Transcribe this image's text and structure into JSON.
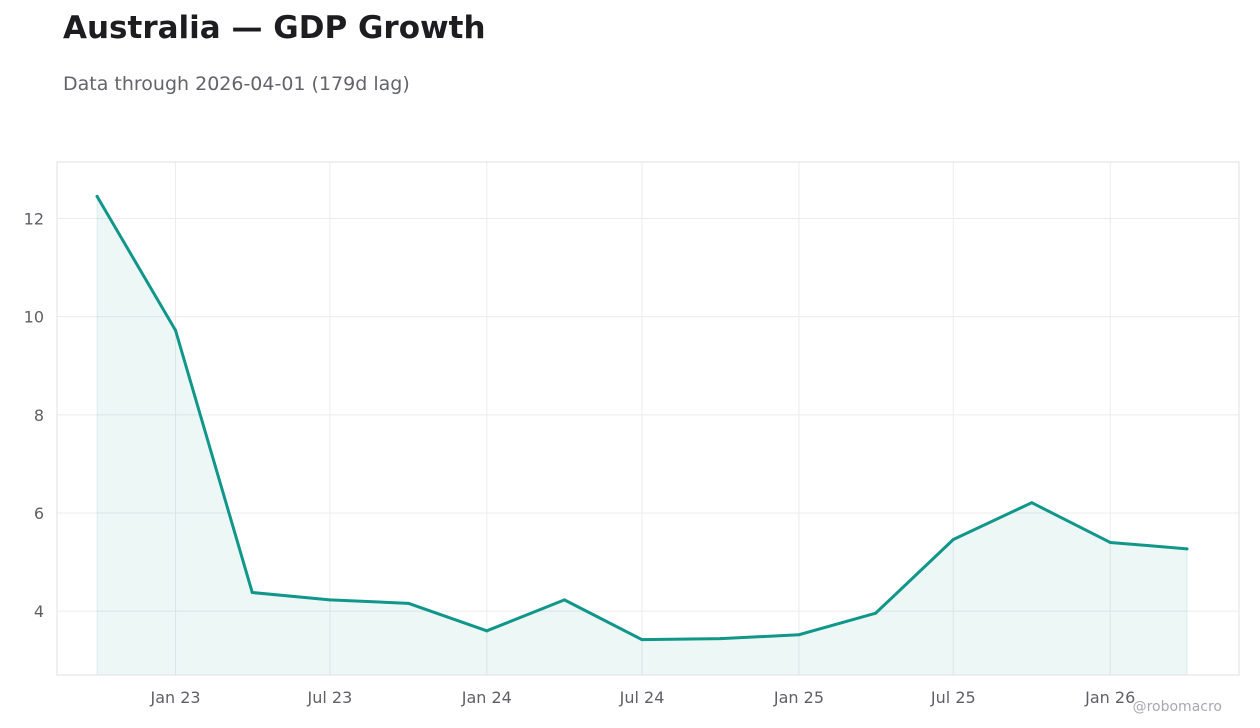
{
  "title": "Australia — GDP Growth",
  "subtitle": "Data through 2026-04-01 (179d lag)",
  "watermark": "@robomacro",
  "colors": {
    "line": "#11968a",
    "fill": "#11968a",
    "grid": "#ececef",
    "frame": "#e0e0e3"
  },
  "chart_data": {
    "type": "area",
    "title": "Australia — GDP Growth",
    "xlabel": "",
    "ylabel": "",
    "grid": true,
    "x_axis_type": "date",
    "xlim": [
      "2022-08-15",
      "2026-06-01"
    ],
    "ylim": [
      2.7,
      13.15
    ],
    "x_ticks": [
      {
        "date": "2023-01-01",
        "label": "Jan 23"
      },
      {
        "date": "2023-07-01",
        "label": "Jul 23"
      },
      {
        "date": "2024-01-01",
        "label": "Jan 24"
      },
      {
        "date": "2024-07-01",
        "label": "Jul 24"
      },
      {
        "date": "2025-01-01",
        "label": "Jan 25"
      },
      {
        "date": "2025-07-01",
        "label": "Jul 25"
      },
      {
        "date": "2026-01-01",
        "label": "Jan 26"
      }
    ],
    "y_ticks": [
      4,
      6,
      8,
      10,
      12
    ],
    "series": [
      {
        "x": [
          "2022-10-01",
          "2023-01-01",
          "2023-04-01",
          "2023-07-01",
          "2023-10-01",
          "2024-01-01",
          "2024-04-01",
          "2024-07-01",
          "2024-10-01",
          "2025-01-01",
          "2025-04-01",
          "2025-07-01",
          "2025-10-01",
          "2026-01-01",
          "2026-04-01"
        ],
        "values": [
          12.45,
          9.72,
          4.38,
          4.23,
          4.16,
          3.6,
          4.23,
          3.42,
          3.44,
          3.52,
          3.96,
          5.46,
          6.21,
          5.4,
          5.27
        ]
      }
    ]
  }
}
